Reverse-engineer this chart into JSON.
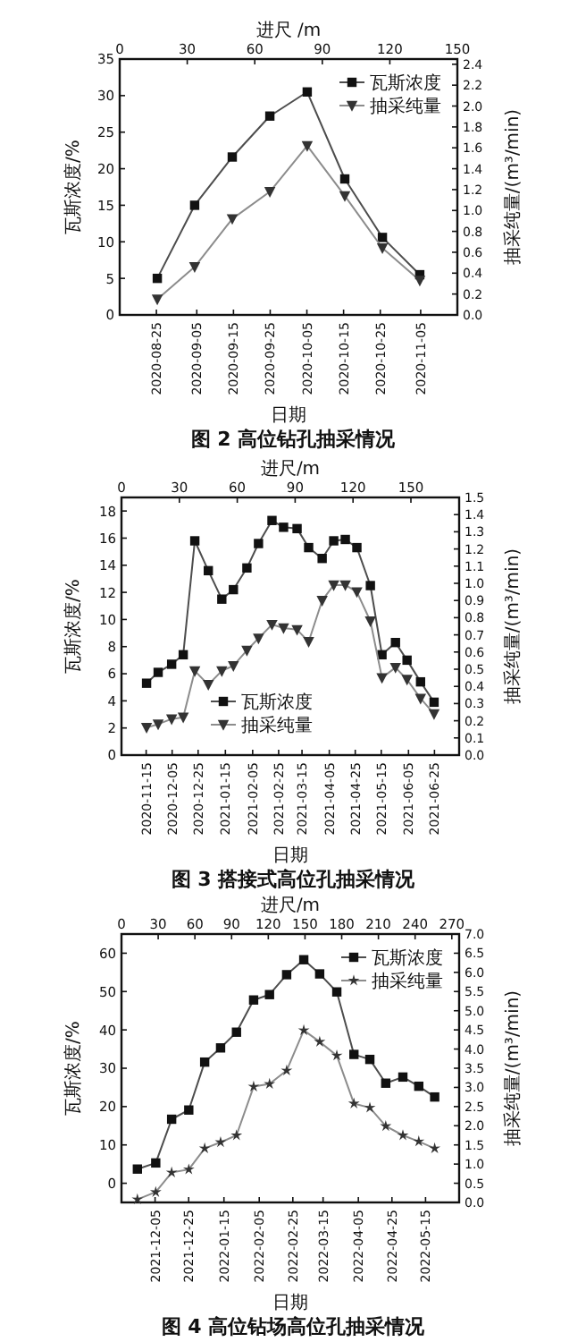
{
  "chart_data": [
    {
      "type": "line",
      "title": "图 2 高位钻孔抽采情况",
      "x2label": "日期",
      "xlabel": "进尺 /m",
      "ylabel": "瓦斯浓度/%",
      "y2label": "抽采纯量/(m³/min)",
      "legend": "top right",
      "x2lim": [
        "2020-08-15",
        "2020-11-15"
      ],
      "x2ticks": [
        "2020-08-25",
        "2020-09-05",
        "2020-09-15",
        "2020-09-25",
        "2020-10-05",
        "2020-10-15",
        "2020-10-25",
        "2020-11-05",
        {
          "value": "2020-11-15",
          "label": null
        }
      ],
      "xlim": [
        0,
        150
      ],
      "xticks": [
        0,
        30,
        60,
        90,
        120,
        150
      ],
      "ylim": [
        0,
        35
      ],
      "yticks": [
        0,
        5,
        10,
        15,
        20,
        25,
        30,
        35
      ],
      "y2lim": [
        0,
        2.45
      ],
      "y2ticks": [
        {
          "value": 0,
          "label": "0.0"
        },
        0.2,
        0.4,
        0.6,
        0.8,
        {
          "value": 1,
          "label": "1.0"
        },
        1.2,
        1.4,
        1.6,
        1.8,
        {
          "value": 2,
          "label": "2.0"
        },
        2.2,
        2.4
      ],
      "series": [
        {
          "name": "瓦斯浓度",
          "color": "#4d4d4d",
          "marker": "square",
          "x": [
            16.7,
            33.3,
            50,
            66.7,
            83.3,
            100,
            116.7,
            133.3
          ],
          "values": [
            5.0,
            15.0,
            21.6,
            27.2,
            30.5,
            18.6,
            10.6,
            5.5
          ]
        },
        {
          "name": "抽采纯量",
          "color": "#8c8c8c",
          "marker": "triangle",
          "axis": "y2",
          "x": [
            16.7,
            33.3,
            50,
            66.7,
            83.3,
            100,
            116.7,
            133.3
          ],
          "values": [
            0.15,
            0.46,
            0.92,
            1.18,
            1.62,
            1.14,
            0.64,
            0.33
          ]
        }
      ]
    },
    {
      "type": "line",
      "title": "图 3 搭接式高位孔抽采情况",
      "x2label": "日期",
      "xlabel": "进尺/m",
      "ylabel": "瓦斯浓度/%",
      "y2label": "抽采纯量/(m³/min)",
      "legend": "bottom",
      "x2lim": [
        "2020-10-27",
        "2021-07-14"
      ],
      "x2ticks": [
        "2020-11-15",
        "2020-12-05",
        "2020-12-25",
        "2021-01-15",
        "2021-02-05",
        "2021-02-25",
        "2021-03-15",
        "2021-04-05",
        "2021-04-25",
        "2021-05-15",
        "2021-06-05",
        "2021-06-25",
        {
          "value": "2021-07-14",
          "label": null
        }
      ],
      "xlim": [
        0,
        175
      ],
      "xticks": [
        0,
        30,
        60,
        90,
        120,
        150
      ],
      "ylim": [
        0,
        19
      ],
      "yticks": [
        0,
        2,
        4,
        6,
        8,
        10,
        12,
        14,
        16,
        18
      ],
      "y2lim": [
        0,
        1.5
      ],
      "y2ticks": [
        {
          "value": 0,
          "label": "0.0"
        },
        0.1,
        0.2,
        0.3,
        0.4,
        0.5,
        0.6,
        0.7,
        0.8,
        0.9,
        {
          "value": 1,
          "label": "1.0"
        },
        1.1,
        1.2,
        1.3,
        1.4,
        1.5
      ],
      "series": [
        {
          "name": "瓦斯浓度",
          "color": "#4d4d4d",
          "marker": "square",
          "x": [
            13,
            19,
            26,
            32,
            38,
            45,
            52,
            58,
            65,
            71,
            78,
            84,
            91,
            97,
            104,
            110,
            116,
            122,
            129,
            135,
            142,
            148,
            155,
            162
          ],
          "values": [
            5.3,
            6.1,
            6.7,
            7.4,
            15.8,
            13.6,
            11.5,
            12.2,
            13.8,
            15.6,
            17.3,
            16.8,
            16.7,
            15.3,
            14.5,
            15.8,
            15.9,
            15.3,
            12.5,
            7.4,
            8.3,
            7.0,
            5.4,
            3.9
          ]
        },
        {
          "name": "抽采纯量",
          "color": "#8c8c8c",
          "marker": "triangle",
          "axis": "y2",
          "x": [
            13,
            19,
            26,
            32,
            38,
            45,
            52,
            58,
            65,
            71,
            78,
            84,
            91,
            97,
            104,
            110,
            116,
            122,
            129,
            135,
            142,
            148,
            155,
            162
          ],
          "values": [
            0.16,
            0.18,
            0.21,
            0.22,
            0.49,
            0.41,
            0.49,
            0.52,
            0.61,
            0.68,
            0.76,
            0.74,
            0.73,
            0.66,
            0.9,
            0.99,
            0.99,
            0.95,
            0.78,
            0.45,
            0.51,
            0.44,
            0.33,
            0.24
          ]
        }
      ]
    },
    {
      "type": "line",
      "title": "图 4 高位钻场高位孔抽采情况",
      "x2label": "日期",
      "xlabel": "进尺/m",
      "ylabel": "瓦斯浓度/%",
      "y2label": "抽采纯量/(m³/min)",
      "legend": "top right",
      "x2lim": [
        "2021-11-15",
        "2022-06-04"
      ],
      "x2ticks": [
        "2021-12-05",
        "2021-12-25",
        "2022-01-15",
        "2022-02-05",
        "2022-02-25",
        "2022-03-15",
        "2022-04-05",
        "2022-04-25",
        "2022-05-15",
        {
          "value": "2022-06-04",
          "label": null
        }
      ],
      "xlim": [
        0,
        276
      ],
      "xticks": [
        0,
        30,
        60,
        90,
        120,
        150,
        180,
        210,
        240,
        270
      ],
      "ylim": [
        -5,
        65
      ],
      "yticks": [
        0,
        10,
        20,
        30,
        40,
        50,
        60
      ],
      "y2lim": [
        0,
        7
      ],
      "y2ticks": [
        {
          "value": 0,
          "label": "0.0"
        },
        0.5,
        {
          "value": 1,
          "label": "1.0"
        },
        1.5,
        {
          "value": 2,
          "label": "2.0"
        },
        2.5,
        {
          "value": 3,
          "label": "3.0"
        },
        3.5,
        {
          "value": 4,
          "label": "4.0"
        },
        4.5,
        {
          "value": 5,
          "label": "5.0"
        },
        5.5,
        {
          "value": 6,
          "label": "6.0"
        },
        6.5,
        {
          "value": 7,
          "label": "7.0"
        }
      ],
      "series": [
        {
          "name": "瓦斯浓度",
          "color": "#4d4d4d",
          "marker": "square",
          "x": [
            13,
            28,
            41,
            55,
            68,
            81,
            94,
            108,
            121,
            135,
            149,
            162,
            176,
            190,
            203,
            216,
            230,
            243,
            256
          ],
          "values": [
            3.7,
            5.3,
            16.7,
            19.1,
            31.6,
            35.3,
            39.4,
            47.8,
            49.2,
            54.4,
            58.3,
            54.6,
            49.9,
            33.6,
            32.3,
            26.1,
            27.7,
            25.3,
            22.5
          ]
        },
        {
          "name": "抽采纯量",
          "color": "#8c8c8c",
          "marker": "star",
          "axis": "y2",
          "x": [
            13,
            28,
            41,
            55,
            68,
            81,
            94,
            108,
            121,
            135,
            149,
            162,
            176,
            190,
            203,
            216,
            230,
            243,
            256
          ],
          "values": [
            0.08,
            0.27,
            0.78,
            0.86,
            1.41,
            1.57,
            1.75,
            3.02,
            3.09,
            3.44,
            4.49,
            4.19,
            3.83,
            2.58,
            2.47,
            1.99,
            1.75,
            1.59,
            1.41
          ]
        }
      ]
    }
  ]
}
